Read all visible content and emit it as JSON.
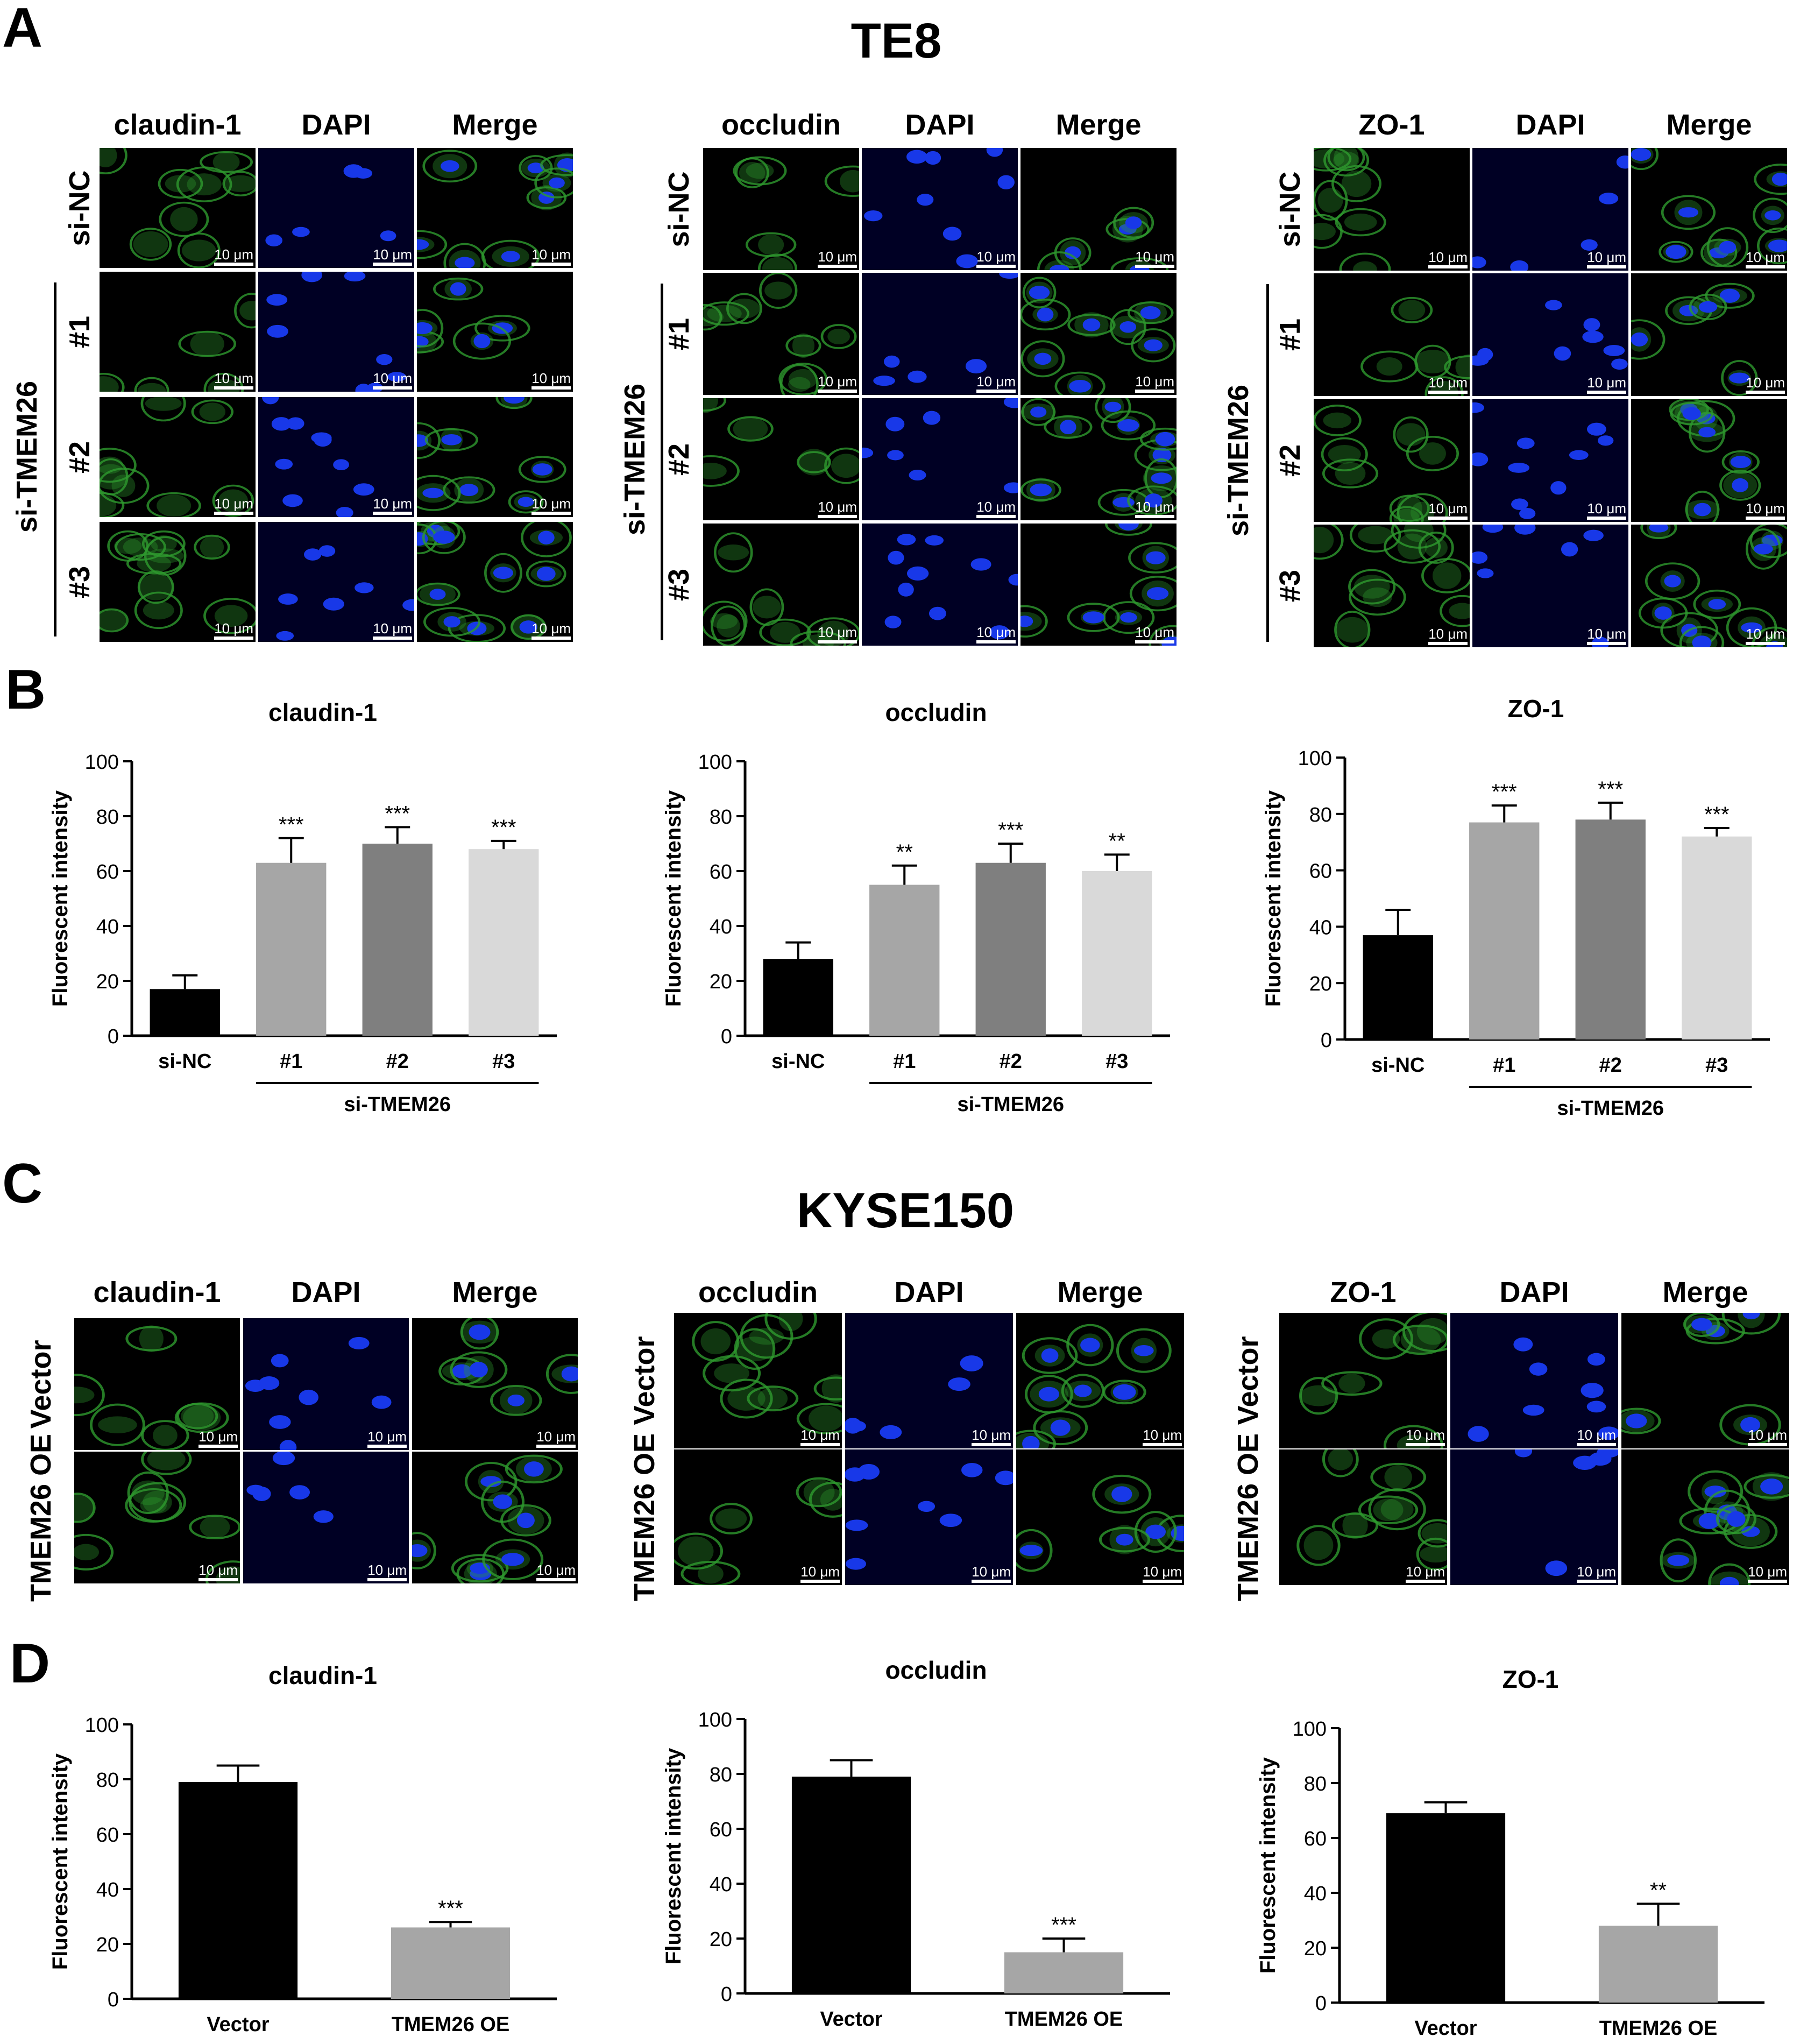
{
  "panels": {
    "A": "A",
    "B": "B",
    "C": "C",
    "D": "D"
  },
  "sections": {
    "top": {
      "title": "TE8",
      "groups": [
        {
          "columns": [
            "claudin-1",
            "DAPI",
            "Merge"
          ],
          "rows": [
            "si-NC",
            "#1",
            "#2",
            "#3"
          ],
          "group_label": "si-TMEM26",
          "scale_label": "10 μm"
        },
        {
          "columns": [
            "occludin",
            "DAPI",
            "Merge"
          ],
          "rows": [
            "si-NC",
            "#1",
            "#2",
            "#3"
          ],
          "group_label": "si-TMEM26",
          "scale_label": "10 μm"
        },
        {
          "columns": [
            "ZO-1",
            "DAPI",
            "Merge"
          ],
          "rows": [
            "si-NC",
            "#1",
            "#2",
            "#3"
          ],
          "group_label": "si-TMEM26",
          "scale_label": "10 μm"
        }
      ]
    },
    "bottom": {
      "title": "KYSE150",
      "groups": [
        {
          "columns": [
            "claudin-1",
            "DAPI",
            "Merge"
          ],
          "rows": [
            "Vector",
            "TMEM26 OE"
          ],
          "scale_label": "10 μm"
        },
        {
          "columns": [
            "occludin",
            "DAPI",
            "Merge"
          ],
          "rows": [
            "Vector",
            "TMEM26 OE"
          ],
          "scale_label": "10 μm"
        },
        {
          "columns": [
            "ZO-1",
            "DAPI",
            "Merge"
          ],
          "rows": [
            "Vector",
            "TMEM26 OE"
          ],
          "scale_label": "10 μm"
        }
      ]
    }
  },
  "colors": {
    "green": "#2e9a2e",
    "blue": "#1838e8",
    "bar_black": "#000000",
    "bar_gray1": "#a6a6a6",
    "bar_gray2": "#7f7f7f",
    "bar_gray3": "#d9d9d9"
  },
  "chart_data": [
    {
      "panel": "B",
      "type": "bar",
      "title": "claudin-1",
      "ylabel": "Fluorescent intensity",
      "ylim": [
        0,
        100
      ],
      "yticks": [
        0,
        20,
        40,
        60,
        80,
        100
      ],
      "categories": [
        "si-NC",
        "#1",
        "#2",
        "#3"
      ],
      "values": [
        17,
        63,
        70,
        68
      ],
      "errors": [
        5,
        9,
        6,
        3
      ],
      "significance": [
        "",
        "***",
        "***",
        "***"
      ],
      "group_label": "si-TMEM26",
      "group_span": [
        1,
        3
      ],
      "bar_colors": [
        "#000000",
        "#a6a6a6",
        "#7f7f7f",
        "#d9d9d9"
      ]
    },
    {
      "panel": "B",
      "type": "bar",
      "title": "occludin",
      "ylabel": "Fluorescent intensity",
      "ylim": [
        0,
        100
      ],
      "yticks": [
        0,
        20,
        40,
        60,
        80,
        100
      ],
      "categories": [
        "si-NC",
        "#1",
        "#2",
        "#3"
      ],
      "values": [
        28,
        55,
        63,
        60
      ],
      "errors": [
        6,
        7,
        7,
        6
      ],
      "significance": [
        "",
        "**",
        "***",
        "**"
      ],
      "group_label": "si-TMEM26",
      "group_span": [
        1,
        3
      ],
      "bar_colors": [
        "#000000",
        "#a6a6a6",
        "#7f7f7f",
        "#d9d9d9"
      ]
    },
    {
      "panel": "B",
      "type": "bar",
      "title": "ZO-1",
      "ylabel": "Fluorescent intensity",
      "ylim": [
        0,
        100
      ],
      "yticks": [
        0,
        20,
        40,
        60,
        80,
        100
      ],
      "categories": [
        "si-NC",
        "#1",
        "#2",
        "#3"
      ],
      "values": [
        37,
        77,
        78,
        72
      ],
      "errors": [
        9,
        6,
        6,
        3
      ],
      "significance": [
        "",
        "***",
        "***",
        "***"
      ],
      "group_label": "si-TMEM26",
      "group_span": [
        1,
        3
      ],
      "bar_colors": [
        "#000000",
        "#a6a6a6",
        "#7f7f7f",
        "#d9d9d9"
      ]
    },
    {
      "panel": "D",
      "type": "bar",
      "title": "claudin-1",
      "ylabel": "Fluorescent intensity",
      "ylim": [
        0,
        100
      ],
      "yticks": [
        0,
        20,
        40,
        60,
        80,
        100
      ],
      "categories": [
        "Vector",
        "TMEM26 OE"
      ],
      "values": [
        79,
        26
      ],
      "errors": [
        6,
        2
      ],
      "significance": [
        "",
        "***"
      ],
      "bar_colors": [
        "#000000",
        "#a6a6a6"
      ]
    },
    {
      "panel": "D",
      "type": "bar",
      "title": "occludin",
      "ylabel": "Fluorescent intensity",
      "ylim": [
        0,
        100
      ],
      "yticks": [
        0,
        20,
        40,
        60,
        80,
        100
      ],
      "categories": [
        "Vector",
        "TMEM26 OE"
      ],
      "values": [
        79,
        15
      ],
      "errors": [
        6,
        5
      ],
      "significance": [
        "",
        "***"
      ],
      "bar_colors": [
        "#000000",
        "#a6a6a6"
      ]
    },
    {
      "panel": "D",
      "type": "bar",
      "title": "ZO-1",
      "ylabel": "Fluorescent intensity",
      "ylim": [
        0,
        100
      ],
      "yticks": [
        0,
        20,
        40,
        60,
        80,
        100
      ],
      "categories": [
        "Vector",
        "TMEM26 OE"
      ],
      "values": [
        69,
        28
      ],
      "errors": [
        4,
        8
      ],
      "significance": [
        "",
        "**"
      ],
      "bar_colors": [
        "#000000",
        "#a6a6a6"
      ]
    }
  ]
}
